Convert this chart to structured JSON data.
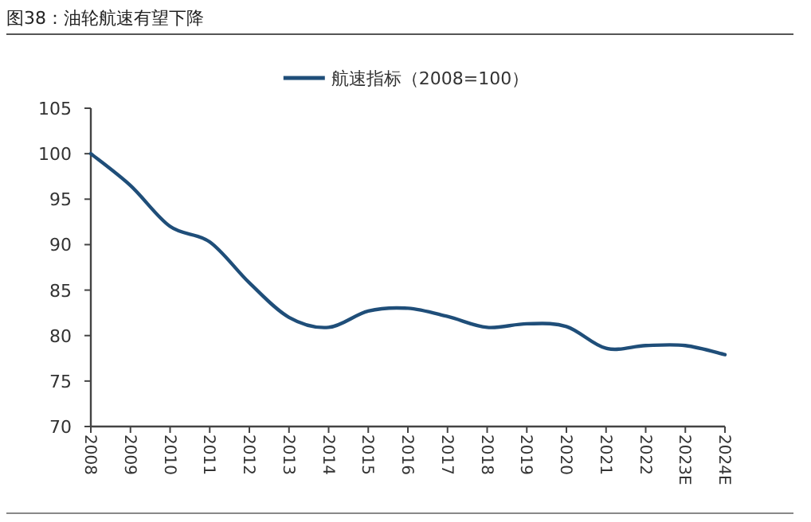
{
  "chart_data": {
    "type": "line",
    "title": "图38：油轮航速有望下降",
    "categories": [
      "2008",
      "2009",
      "2010",
      "2011",
      "2012",
      "2013",
      "2014",
      "2015",
      "2016",
      "2017",
      "2018",
      "2019",
      "2020",
      "2021",
      "2022",
      "2023E",
      "2024E"
    ],
    "series": [
      {
        "name": "航速指标（2008=100）",
        "color": "#1f4e79",
        "values": [
          100,
          96.5,
          92,
          90.3,
          85.8,
          82,
          80.9,
          82.7,
          83,
          82.1,
          80.9,
          81.3,
          81,
          78.6,
          78.9,
          78.9,
          77.9
        ]
      }
    ],
    "ylim": [
      70,
      105
    ],
    "yticks": [
      70,
      75,
      80,
      85,
      90,
      95,
      100,
      105
    ],
    "legend": "top",
    "grid": false,
    "marker": "none",
    "line_style": "solid"
  }
}
